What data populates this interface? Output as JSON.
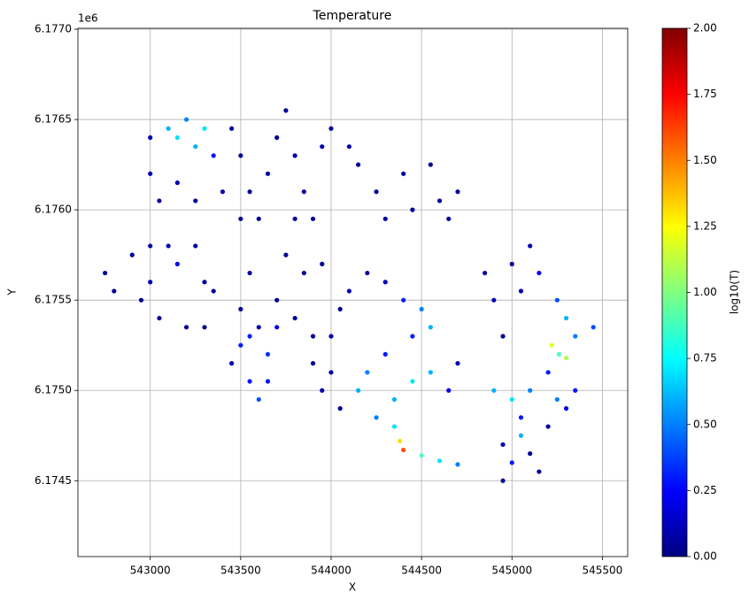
{
  "chart_data": {
    "type": "scatter",
    "title": "Temperature",
    "x_label": "X",
    "y_label": "Y",
    "y_offset_text": "1e6",
    "xlim": [
      542600,
      545640
    ],
    "ylim": [
      6174080,
      6177005
    ],
    "xticks": [
      543000,
      543500,
      544000,
      544500,
      545000,
      545500
    ],
    "yticks": [
      {
        "value": 6174500,
        "label": "6.1745"
      },
      {
        "value": 6175000,
        "label": "6.1750"
      },
      {
        "value": 6175500,
        "label": "6.1755"
      },
      {
        "value": 6176000,
        "label": "6.1760"
      },
      {
        "value": 6176500,
        "label": "6.1765"
      },
      {
        "value": 6177000,
        "label": "6.1770"
      }
    ],
    "grid": true,
    "colormap": "jet",
    "colorbar_label": "log10(T)",
    "clim": [
      0,
      2
    ],
    "colorbar_ticks": [
      {
        "value": 0,
        "label": "0.00"
      },
      {
        "value": 0.25,
        "label": "0.25"
      },
      {
        "value": 0.5,
        "label": "0.50"
      },
      {
        "value": 0.75,
        "label": "0.75"
      },
      {
        "value": 1,
        "label": "1.00"
      },
      {
        "value": 1.25,
        "label": "1.25"
      },
      {
        "value": 1.5,
        "label": "1.50"
      },
      {
        "value": 1.75,
        "label": "1.75"
      },
      {
        "value": 2,
        "label": "2.00"
      }
    ],
    "x": [
      543000,
      543000,
      543050,
      543100,
      543150,
      543200,
      543250,
      543300,
      543350,
      543400,
      543150,
      543250,
      543450,
      543500,
      543550,
      543600,
      543650,
      543700,
      543500,
      543750,
      543800,
      543850,
      543900,
      543950,
      544000,
      544100,
      544150,
      543800,
      544250,
      544300,
      544400,
      544450,
      544550,
      544600,
      544700,
      544650,
      542750,
      542800,
      542900,
      542950,
      543000,
      543050,
      543100,
      543150,
      543250,
      543300,
      543350,
      543000,
      543200,
      543300,
      543500,
      543550,
      543600,
      543700,
      543750,
      543800,
      543850,
      543900,
      543950,
      543450,
      543500,
      543550,
      543600,
      543650,
      543700,
      543550,
      543650,
      543900,
      543950,
      544000,
      544000,
      544050,
      544100,
      544200,
      544300,
      544400,
      544500,
      544550,
      544450,
      544300,
      544200,
      544150,
      544350,
      544450,
      544550,
      544650,
      544700,
      544250,
      544050,
      544350,
      544380,
      544400,
      544500,
      544600,
      544700,
      544850,
      544900,
      544950,
      545000,
      545050,
      545100,
      545150,
      545250,
      545300,
      545350,
      545450,
      545220,
      545260,
      545300,
      544900,
      545000,
      545100,
      545050,
      545200,
      545250,
      545300,
      545350,
      544950,
      545000,
      545050,
      545100,
      545150,
      544950,
      545200
    ],
    "y": [
      6176400,
      6176200,
      6176050,
      6176450,
      6176400,
      6176500,
      6176350,
      6176450,
      6176300,
      6176100,
      6176150,
      6176050,
      6176450,
      6176300,
      6176100,
      6175950,
      6176200,
      6176400,
      6175950,
      6176550,
      6176300,
      6176100,
      6175950,
      6176350,
      6176450,
      6176350,
      6176250,
      6175950,
      6176100,
      6175950,
      6176200,
      6176000,
      6176250,
      6176050,
      6176100,
      6175950,
      6175650,
      6175550,
      6175750,
      6175500,
      6175600,
      6175400,
      6175800,
      6175700,
      6175800,
      6175600,
      6175550,
      6175800,
      6175350,
      6175350,
      6175450,
      6175650,
      6175350,
      6175500,
      6175750,
      6175400,
      6175650,
      6175300,
      6175700,
      6175150,
      6175250,
      6175050,
      6174950,
      6175200,
      6175350,
      6175300,
      6175050,
      6175150,
      6175000,
      6175100,
      6175300,
      6175450,
      6175550,
      6175650,
      6175600,
      6175500,
      6175450,
      6175350,
      6175300,
      6175200,
      6175100,
      6175000,
      6174950,
      6175050,
      6175100,
      6175000,
      6175150,
      6174850,
      6174900,
      6174800,
      6174720,
      6174670,
      6174640,
      6174610,
      6174590,
      6175650,
      6175500,
      6175300,
      6175700,
      6175550,
      6175800,
      6175650,
      6175500,
      6175400,
      6175300,
      6175350,
      6175250,
      6175200,
      6175180,
      6175000,
      6174950,
      6175000,
      6174850,
      6175100,
      6174950,
      6174900,
      6175000,
      6174700,
      6174600,
      6174750,
      6174650,
      6174550,
      6174500,
      6174800
    ],
    "values": [
      0.1,
      0.1,
      0.05,
      0.6,
      0.7,
      0.5,
      0.6,
      0.7,
      0.3,
      0.05,
      0.1,
      0.05,
      0.05,
      0.05,
      0.05,
      0.05,
      0.05,
      0.05,
      0.05,
      0.05,
      0.1,
      0.05,
      0.05,
      0.1,
      0.05,
      0.1,
      0.05,
      0.05,
      0.05,
      0.05,
      0.05,
      0.05,
      0.05,
      0.05,
      0.05,
      0.05,
      0.05,
      0.05,
      0.05,
      0.05,
      0.1,
      0.05,
      0.1,
      0.2,
      0.05,
      0.05,
      0.05,
      0.05,
      0.05,
      0.05,
      0.05,
      0.05,
      0.1,
      0.05,
      0.05,
      0.05,
      0.05,
      0.05,
      0.05,
      0.1,
      0.3,
      0.3,
      0.4,
      0.35,
      0.2,
      0.3,
      0.3,
      0.05,
      0.1,
      0.05,
      0.1,
      0.05,
      0.1,
      0.05,
      0.1,
      0.3,
      0.5,
      0.6,
      0.3,
      0.3,
      0.5,
      0.6,
      0.6,
      0.7,
      0.6,
      0.2,
      0.1,
      0.5,
      0.05,
      0.7,
      1.3,
      1.6,
      0.9,
      0.7,
      0.5,
      0.05,
      0.1,
      0.05,
      0.05,
      0.1,
      0.1,
      0.2,
      0.4,
      0.6,
      0.5,
      0.4,
      1.2,
      0.9,
      1.1,
      0.6,
      0.7,
      0.5,
      0.3,
      0.3,
      0.5,
      0.2,
      0.3,
      0.1,
      0.3,
      0.6,
      0.05,
      0.05,
      0.05,
      0.05
    ]
  }
}
